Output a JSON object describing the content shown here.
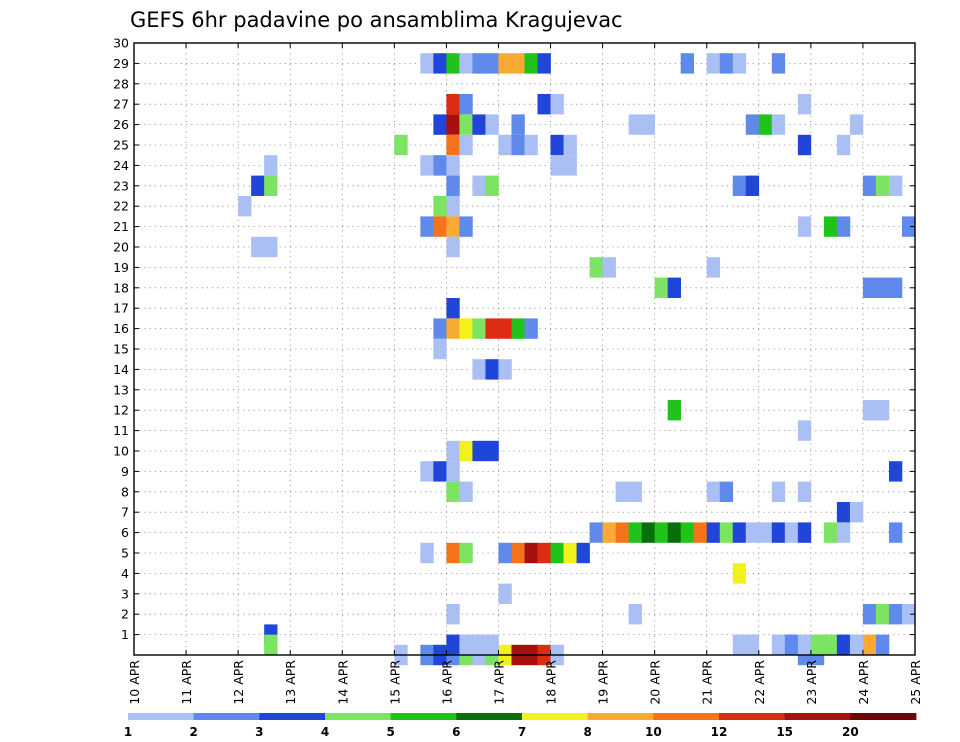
{
  "chart_data": {
    "type": "heatmap",
    "title": "GEFS 6hr padavine po ansamblima Kragujevac",
    "x_tick_labels": [
      "10 APR",
      "11 APR",
      "12 APR",
      "13 APR",
      "14 APR",
      "15 APR",
      "16 APR",
      "17 APR",
      "18 APR",
      "19 APR",
      "20 APR",
      "21 APR",
      "22 APR",
      "23 APR",
      "24 APR",
      "25 APR"
    ],
    "y_tick_labels": [
      "1",
      "2",
      "3",
      "4",
      "5",
      "6",
      "7",
      "8",
      "9",
      "10",
      "11",
      "12",
      "13",
      "14",
      "15",
      "16",
      "17",
      "18",
      "19",
      "20",
      "21",
      "22",
      "23",
      "24",
      "25",
      "26",
      "27",
      "28",
      "29",
      "30"
    ],
    "y_range": [
      0,
      30
    ],
    "x_range_days": [
      0,
      15
    ],
    "steps_per_day": 4,
    "grid": "dotted",
    "colorbar": {
      "labels": [
        "1",
        "2",
        "3",
        "4",
        "5",
        "6",
        "7",
        "8",
        "10",
        "12",
        "15",
        "20"
      ],
      "colors": [
        "#aabff4",
        "#5f89ea",
        "#1f45d9",
        "#7ce363",
        "#21c21a",
        "#0a6e0a",
        "#f2f21a",
        "#f9aa34",
        "#f4731b",
        "#dc2d14",
        "#a81010",
        "#6b0808"
      ]
    },
    "cells": [
      [
        0,
        5.0,
        "#aabff4"
      ],
      [
        0,
        5.5,
        "#5f89ea"
      ],
      [
        0,
        5.75,
        "#1f45d9"
      ],
      [
        0,
        6.0,
        "#5f89ea"
      ],
      [
        0,
        6.25,
        "#7ce363"
      ],
      [
        0,
        6.5,
        "#aabff4"
      ],
      [
        0,
        6.75,
        "#7ce363"
      ],
      [
        0,
        7.0,
        "#f2f21a"
      ],
      [
        0,
        7.25,
        "#a81010"
      ],
      [
        0,
        7.5,
        "#a81010"
      ],
      [
        0,
        7.75,
        "#dc2d14"
      ],
      [
        0,
        8.0,
        "#aabff4"
      ],
      [
        0,
        12.75,
        "#5f89ea"
      ],
      [
        0,
        13.0,
        "#5f89ea"
      ],
      [
        29,
        5.5,
        "#aabff4"
      ],
      [
        29,
        5.75,
        "#1f45d9"
      ],
      [
        29,
        6.0,
        "#21c21a"
      ],
      [
        29,
        6.25,
        "#aabff4"
      ],
      [
        29,
        6.5,
        "#5f89ea"
      ],
      [
        29,
        6.75,
        "#5f89ea"
      ],
      [
        29,
        7.0,
        "#f9aa34"
      ],
      [
        29,
        7.25,
        "#f9aa34"
      ],
      [
        29,
        7.5,
        "#21c21a"
      ],
      [
        29,
        7.75,
        "#1f45d9"
      ],
      [
        29,
        10.5,
        "#5f89ea"
      ],
      [
        29,
        11.0,
        "#aabff4"
      ],
      [
        29,
        11.25,
        "#5f89ea"
      ],
      [
        29,
        11.5,
        "#aabff4"
      ],
      [
        29,
        12.25,
        "#5f89ea"
      ],
      [
        27,
        6.0,
        "#dc2d14"
      ],
      [
        27,
        6.25,
        "#5f89ea"
      ],
      [
        27,
        7.75,
        "#1f45d9"
      ],
      [
        27,
        8.0,
        "#aabff4"
      ],
      [
        27,
        12.75,
        "#aabff4"
      ],
      [
        26,
        5.75,
        "#1f45d9"
      ],
      [
        26,
        6.0,
        "#a81010"
      ],
      [
        26,
        6.25,
        "#7ce363"
      ],
      [
        26,
        6.5,
        "#1f45d9"
      ],
      [
        26,
        6.75,
        "#aabff4"
      ],
      [
        26,
        7.25,
        "#5f89ea"
      ],
      [
        26,
        9.5,
        "#aabff4"
      ],
      [
        26,
        9.75,
        "#aabff4"
      ],
      [
        26,
        11.75,
        "#5f89ea"
      ],
      [
        26,
        12.0,
        "#21c21a"
      ],
      [
        26,
        12.25,
        "#aabff4"
      ],
      [
        26,
        13.75,
        "#aabff4"
      ],
      [
        25,
        5.0,
        "#7ce363"
      ],
      [
        25,
        6.0,
        "#f4731b"
      ],
      [
        25,
        6.25,
        "#aabff4"
      ],
      [
        25,
        7.0,
        "#aabff4"
      ],
      [
        25,
        7.25,
        "#5f89ea"
      ],
      [
        25,
        7.5,
        "#aabff4"
      ],
      [
        25,
        8.0,
        "#1f45d9"
      ],
      [
        25,
        8.25,
        "#aabff4"
      ],
      [
        25,
        12.75,
        "#1f45d9"
      ],
      [
        25,
        13.5,
        "#aabff4"
      ],
      [
        24,
        2.5,
        "#aabff4"
      ],
      [
        24,
        5.5,
        "#aabff4"
      ],
      [
        24,
        5.75,
        "#5f89ea"
      ],
      [
        24,
        6.0,
        "#aabff4"
      ],
      [
        24,
        8.0,
        "#aabff4"
      ],
      [
        24,
        8.25,
        "#aabff4"
      ],
      [
        23,
        2.25,
        "#1f45d9"
      ],
      [
        23,
        2.5,
        "#7ce363"
      ],
      [
        23,
        6.0,
        "#5f89ea"
      ],
      [
        23,
        6.5,
        "#aabff4"
      ],
      [
        23,
        6.75,
        "#7ce363"
      ],
      [
        23,
        11.5,
        "#5f89ea"
      ],
      [
        23,
        11.75,
        "#1f45d9"
      ],
      [
        23,
        14.0,
        "#5f89ea"
      ],
      [
        23,
        14.25,
        "#7ce363"
      ],
      [
        23,
        14.5,
        "#aabff4"
      ],
      [
        22,
        2.0,
        "#aabff4"
      ],
      [
        22,
        6.0,
        "#aabff4"
      ],
      [
        22,
        5.75,
        "#7ce363"
      ],
      [
        21,
        5.5,
        "#5f89ea"
      ],
      [
        21,
        5.75,
        "#f4731b"
      ],
      [
        21,
        6.0,
        "#f9aa34"
      ],
      [
        21,
        6.25,
        "#5f89ea"
      ],
      [
        21,
        12.75,
        "#aabff4"
      ],
      [
        21,
        13.25,
        "#21c21a"
      ],
      [
        21,
        13.5,
        "#5f89ea"
      ],
      [
        21,
        14.75,
        "#5f89ea"
      ],
      [
        20,
        2.25,
        "#aabff4"
      ],
      [
        20,
        2.5,
        "#aabff4"
      ],
      [
        20,
        6.0,
        "#aabff4"
      ],
      [
        19,
        8.75,
        "#7ce363"
      ],
      [
        19,
        9.0,
        "#aabff4"
      ],
      [
        19,
        11.0,
        "#aabff4"
      ],
      [
        18,
        10.0,
        "#7ce363"
      ],
      [
        18,
        10.25,
        "#1f45d9"
      ],
      [
        18,
        14.0,
        "#5f89ea"
      ],
      [
        18,
        14.25,
        "#5f89ea"
      ],
      [
        18,
        14.5,
        "#5f89ea"
      ],
      [
        17,
        6.0,
        "#1f45d9"
      ],
      [
        16,
        5.75,
        "#5f89ea"
      ],
      [
        16,
        6.0,
        "#f9aa34"
      ],
      [
        16,
        6.25,
        "#f2f21a"
      ],
      [
        16,
        6.5,
        "#7ce363"
      ],
      [
        16,
        6.75,
        "#dc2d14"
      ],
      [
        16,
        7.0,
        "#dc2d14"
      ],
      [
        16,
        7.25,
        "#21c21a"
      ],
      [
        16,
        7.5,
        "#5f89ea"
      ],
      [
        15,
        5.75,
        "#aabff4"
      ],
      [
        14,
        6.5,
        "#aabff4"
      ],
      [
        14,
        6.75,
        "#1f45d9"
      ],
      [
        14,
        7.0,
        "#aabff4"
      ],
      [
        12,
        10.25,
        "#21c21a"
      ],
      [
        12,
        14.0,
        "#aabff4"
      ],
      [
        12,
        14.25,
        "#aabff4"
      ],
      [
        11,
        12.75,
        "#aabff4"
      ],
      [
        10,
        6.0,
        "#aabff4"
      ],
      [
        10,
        6.25,
        "#f2f21a"
      ],
      [
        10,
        6.5,
        "#1f45d9"
      ],
      [
        10,
        6.75,
        "#1f45d9"
      ],
      [
        9,
        5.5,
        "#aabff4"
      ],
      [
        9,
        5.75,
        "#1f45d9"
      ],
      [
        9,
        6.0,
        "#aabff4"
      ],
      [
        9,
        14.5,
        "#1f45d9"
      ],
      [
        8,
        6.0,
        "#7ce363"
      ],
      [
        8,
        6.25,
        "#aabff4"
      ],
      [
        8,
        9.25,
        "#aabff4"
      ],
      [
        8,
        9.5,
        "#aabff4"
      ],
      [
        8,
        11.0,
        "#aabff4"
      ],
      [
        8,
        11.25,
        "#5f89ea"
      ],
      [
        8,
        12.25,
        "#aabff4"
      ],
      [
        8,
        12.75,
        "#aabff4"
      ],
      [
        7,
        13.5,
        "#1f45d9"
      ],
      [
        7,
        13.75,
        "#aabff4"
      ],
      [
        6,
        8.75,
        "#5f89ea"
      ],
      [
        6,
        9.0,
        "#f9aa34"
      ],
      [
        6,
        9.25,
        "#f4731b"
      ],
      [
        6,
        9.5,
        "#21c21a"
      ],
      [
        6,
        9.75,
        "#0a6e0a"
      ],
      [
        6,
        10.0,
        "#21c21a"
      ],
      [
        6,
        10.25,
        "#0a6e0a"
      ],
      [
        6,
        10.5,
        "#21c21a"
      ],
      [
        6,
        10.75,
        "#f4731b"
      ],
      [
        6,
        11.0,
        "#1f45d9"
      ],
      [
        6,
        11.25,
        "#7ce363"
      ],
      [
        6,
        11.5,
        "#1f45d9"
      ],
      [
        6,
        11.75,
        "#aabff4"
      ],
      [
        6,
        12.0,
        "#aabff4"
      ],
      [
        6,
        12.25,
        "#1f45d9"
      ],
      [
        6,
        12.5,
        "#aabff4"
      ],
      [
        6,
        12.75,
        "#1f45d9"
      ],
      [
        6,
        13.25,
        "#7ce363"
      ],
      [
        6,
        13.5,
        "#aabff4"
      ],
      [
        6,
        14.5,
        "#5f89ea"
      ],
      [
        5,
        5.5,
        "#aabff4"
      ],
      [
        5,
        6.0,
        "#f4731b"
      ],
      [
        5,
        6.25,
        "#7ce363"
      ],
      [
        5,
        7.0,
        "#5f89ea"
      ],
      [
        5,
        7.25,
        "#f4731b"
      ],
      [
        5,
        7.5,
        "#a81010"
      ],
      [
        5,
        7.75,
        "#dc2d14"
      ],
      [
        5,
        8.0,
        "#21c21a"
      ],
      [
        5,
        8.25,
        "#f2f21a"
      ],
      [
        5,
        8.5,
        "#1f45d9"
      ],
      [
        4,
        11.5,
        "#f2f21a"
      ],
      [
        3,
        7.0,
        "#aabff4"
      ],
      [
        2,
        6.0,
        "#aabff4"
      ],
      [
        2,
        9.5,
        "#aabff4"
      ],
      [
        2,
        14.0,
        "#5f89ea"
      ],
      [
        2,
        14.25,
        "#7ce363"
      ],
      [
        2,
        14.5,
        "#5f89ea"
      ],
      [
        2,
        14.75,
        "#aabff4"
      ],
      [
        1,
        2.5,
        "#1f45d9"
      ],
      [
        0.5,
        2.5,
        "#7ce363"
      ],
      [
        0.5,
        6.0,
        "#1f45d9"
      ],
      [
        0.5,
        6.25,
        "#aabff4"
      ],
      [
        0.5,
        6.5,
        "#aabff4"
      ],
      [
        0.5,
        6.75,
        "#aabff4"
      ],
      [
        0.5,
        11.5,
        "#aabff4"
      ],
      [
        0.5,
        11.75,
        "#aabff4"
      ],
      [
        0.5,
        12.25,
        "#aabff4"
      ],
      [
        0.5,
        12.5,
        "#5f89ea"
      ],
      [
        0.5,
        12.75,
        "#aabff4"
      ],
      [
        0.5,
        13.0,
        "#7ce363"
      ],
      [
        0.5,
        13.25,
        "#7ce363"
      ],
      [
        0.5,
        13.5,
        "#1f45d9"
      ],
      [
        0.5,
        13.75,
        "#aabff4"
      ],
      [
        0.5,
        14.0,
        "#f9aa34"
      ],
      [
        0.5,
        14.25,
        "#5f89ea"
      ]
    ]
  }
}
